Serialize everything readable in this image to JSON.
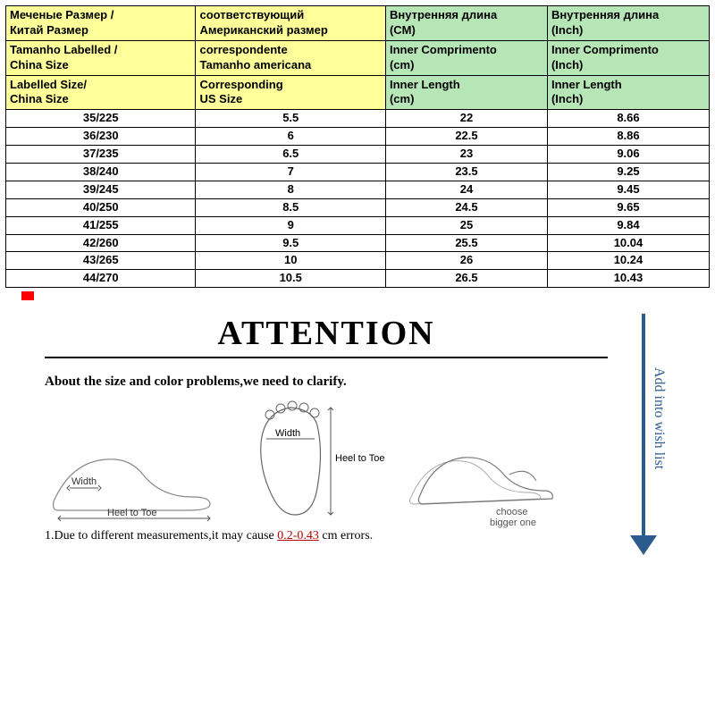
{
  "table": {
    "header_bg_left": "#feff99",
    "header_bg_right": "#b6e6b6",
    "columns": [
      {
        "ru": "Меченые Размер / Китай Размер",
        "pt": "Tamanho Labelled / China Size",
        "en": "Labelled Size/ China Size"
      },
      {
        "ru": "соответствующий Американский размер",
        "pt": "correspondente Tamanho americana",
        "en": "Corresponding US Size"
      },
      {
        "ru": "Внутренняя длина (CM)",
        "pt": "Inner Comprimento (cm)",
        "en": "Inner Length (cm)"
      },
      {
        "ru": "Внутренняя длина (Inch)",
        "pt": "Inner Comprimento (Inch)",
        "en": "Inner Length (Inch)"
      }
    ],
    "h_ru_c1_l1": "Меченые Размер /",
    "h_ru_c1_l2": "Китай Размер",
    "h_ru_c2_l1": "соответствующий",
    "h_ru_c2_l2": "Американский размер",
    "h_ru_c3_l1": "Внутренняя длина",
    "h_ru_c3_l2": "(CM)",
    "h_ru_c4_l1": "Внутренняя длина",
    "h_ru_c4_l2": "(Inch)",
    "h_pt_c1_l1": "Tamanho Labelled /",
    "h_pt_c1_l2": "China Size",
    "h_pt_c2_l1": "correspondente",
    "h_pt_c2_l2": "Tamanho americana",
    "h_pt_c3_l1": "Inner Comprimento",
    "h_pt_c3_l2": "(cm)",
    "h_pt_c4_l1": "Inner Comprimento",
    "h_pt_c4_l2": "(Inch)",
    "h_en_c1_l1": "Labelled Size/",
    "h_en_c1_l2": "China Size",
    "h_en_c2_l1": "Corresponding",
    "h_en_c2_l2": "US Size",
    "h_en_c3_l1": "Inner Length",
    "h_en_c3_l2": "(cm)",
    "h_en_c4_l1": "Inner Length",
    "h_en_c4_l2": "(Inch)",
    "rows": [
      {
        "c1": "35/225",
        "c2": "5.5",
        "c3": "22",
        "c4": "8.66"
      },
      {
        "c1": "36/230",
        "c2": "6",
        "c3": "22.5",
        "c4": "8.86"
      },
      {
        "c1": "37/235",
        "c2": "6.5",
        "c3": "23",
        "c4": "9.06"
      },
      {
        "c1": "38/240",
        "c2": "7",
        "c3": "23.5",
        "c4": "9.25"
      },
      {
        "c1": "39/245",
        "c2": "8",
        "c3": "24",
        "c4": "9.45"
      },
      {
        "c1": "40/250",
        "c2": "8.5",
        "c3": "24.5",
        "c4": "9.65"
      },
      {
        "c1": "41/255",
        "c2": "9",
        "c3": "25",
        "c4": "9.84"
      },
      {
        "c1": "42/260",
        "c2": "9.5",
        "c3": "25.5",
        "c4": "10.04"
      },
      {
        "c1": "43/265",
        "c2": "10",
        "c3": "26",
        "c4": "10.24"
      },
      {
        "c1": "44/270",
        "c2": "10.5",
        "c3": "26.5",
        "c4": "10.43"
      }
    ]
  },
  "attention": {
    "title": "ATTENTION",
    "clarify": "About the size and color problems,we need to clarify.",
    "diagram_width_label": "Width",
    "diagram_heel_label": "Heel to Toe",
    "diagram_choose": "choose bigger one",
    "note_prefix": "1.Due to different measurements,it may cause ",
    "note_error": "0.2-0.43",
    "note_suffix": " cm errors.",
    "arrow_label": "Add into wish list",
    "arrow_color": "#2c5b8e"
  }
}
